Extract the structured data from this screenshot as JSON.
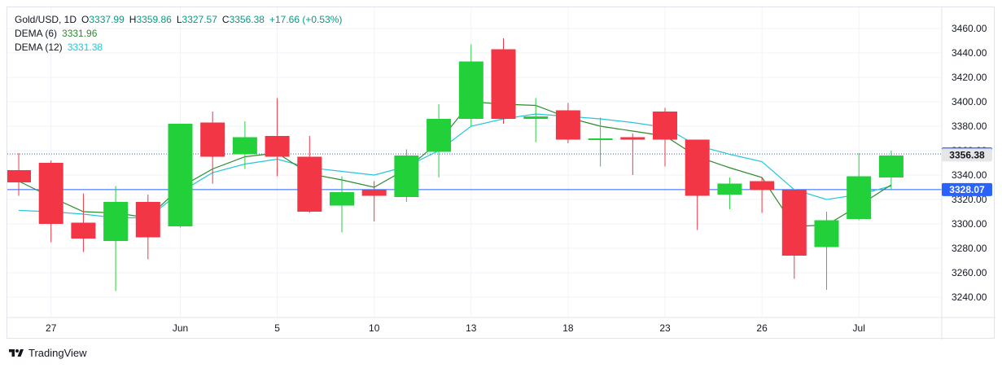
{
  "legend": {
    "symbol": "Gold/USD, 1D",
    "ohlc": {
      "open_label": "O",
      "open": "3337.99",
      "high_label": "H",
      "high": "3359.86",
      "low_label": "L",
      "low": "3327.57",
      "close_label": "C",
      "close": "3356.38",
      "change": "+17.66 (+0.53%)"
    },
    "dema6": {
      "label": "DEMA (6)",
      "value": "3331.96",
      "color": "#2e8b2e"
    },
    "dema12": {
      "label": "DEMA (12)",
      "value": "3331.38",
      "color": "#26c6da"
    }
  },
  "price_tags": {
    "dema6_tag": {
      "value": "3357.21",
      "color": "#2962ff"
    },
    "close_tag": {
      "value": "3356.38",
      "color": "#e6e6e6"
    },
    "dema12_tag": {
      "value": "3328.07",
      "color": "#2962ff"
    }
  },
  "branding": "TradingView",
  "colors": {
    "up": "#22d13a",
    "down": "#f23645",
    "grid": "#f0f3fa"
  },
  "chart_data": {
    "type": "candlestick",
    "title": "Gold/USD, 1D",
    "y_ticks": [
      3240,
      3260,
      3280,
      3300,
      3320,
      3340,
      3360,
      3380,
      3400,
      3420,
      3440,
      3460
    ],
    "x_ticks": [
      {
        "index": 1,
        "label": "27"
      },
      {
        "index": 5,
        "label": "Jun"
      },
      {
        "index": 8,
        "label": "5"
      },
      {
        "index": 11,
        "label": "10"
      },
      {
        "index": 14,
        "label": "13"
      },
      {
        "index": 17,
        "label": "18"
      },
      {
        "index": 20,
        "label": "23"
      },
      {
        "index": 23,
        "label": "26"
      },
      {
        "index": 26,
        "label": "Jul"
      }
    ],
    "candles": [
      {
        "o": 3344,
        "h": 3358,
        "l": 3323,
        "c": 3334
      },
      {
        "o": 3350,
        "h": 3352,
        "l": 3285,
        "c": 3300
      },
      {
        "o": 3301,
        "h": 3325,
        "l": 3277,
        "c": 3288
      },
      {
        "o": 3286,
        "h": 3331,
        "l": 3245,
        "c": 3318
      },
      {
        "o": 3318,
        "h": 3324,
        "l": 3271,
        "c": 3289
      },
      {
        "o": 3298,
        "h": 3382,
        "l": 3297,
        "c": 3382
      },
      {
        "o": 3383,
        "h": 3392,
        "l": 3333,
        "c": 3355
      },
      {
        "o": 3357,
        "h": 3384,
        "l": 3345,
        "c": 3371
      },
      {
        "o": 3372,
        "h": 3403,
        "l": 3339,
        "c": 3355
      },
      {
        "o": 3355,
        "h": 3372,
        "l": 3309,
        "c": 3310
      },
      {
        "o": 3315,
        "h": 3339,
        "l": 3293,
        "c": 3326
      },
      {
        "o": 3328,
        "h": 3335,
        "l": 3302,
        "c": 3323
      },
      {
        "o": 3322,
        "h": 3361,
        "l": 3318,
        "c": 3356
      },
      {
        "o": 3359,
        "h": 3398,
        "l": 3338,
        "c": 3386
      },
      {
        "o": 3386,
        "h": 3447,
        "l": 3380,
        "c": 3433
      },
      {
        "o": 3443,
        "h": 3452,
        "l": 3382,
        "c": 3386
      },
      {
        "o": 3386,
        "h": 3403,
        "l": 3367,
        "c": 3388
      },
      {
        "o": 3393,
        "h": 3399,
        "l": 3366,
        "c": 3369
      },
      {
        "o": 3370,
        "h": 3387,
        "l": 3347,
        "c": 3370
      },
      {
        "o": 3371,
        "h": 3374,
        "l": 3340,
        "c": 3369
      },
      {
        "o": 3392,
        "h": 3395,
        "l": 3347,
        "c": 3369
      },
      {
        "o": 3369,
        "h": 3369,
        "l": 3295,
        "c": 3323
      },
      {
        "o": 3324,
        "h": 3338,
        "l": 3312,
        "c": 3333
      },
      {
        "o": 3335,
        "h": 3338,
        "l": 3309,
        "c": 3328
      },
      {
        "o": 3328,
        "h": 3328,
        "l": 3255,
        "c": 3274
      },
      {
        "o": 3281,
        "h": 3310,
        "l": 3246,
        "c": 3303
      },
      {
        "o": 3304,
        "h": 3358,
        "l": 3303,
        "c": 3339
      },
      {
        "o": 3338,
        "h": 3360,
        "l": 3328,
        "c": 3356
      }
    ],
    "series": [
      {
        "name": "DEMA (6)",
        "color": "#2e8b2e",
        "values": [
          3335,
          3322,
          3310,
          3309,
          3305,
          3330,
          3345,
          3355,
          3358,
          3341,
          3336,
          3330,
          3345,
          3367,
          3400,
          3398,
          3397,
          3387,
          3380,
          3376,
          3372,
          3355,
          3346,
          3338,
          3298,
          3299,
          3315,
          3332
        ]
      },
      {
        "name": "DEMA (12)",
        "color": "#26c6da",
        "values": [
          3311,
          3310,
          3308,
          3305,
          3305,
          3326,
          3342,
          3349,
          3353,
          3346,
          3343,
          3340,
          3347,
          3360,
          3380,
          3386,
          3390,
          3388,
          3386,
          3383,
          3379,
          3364,
          3357,
          3351,
          3328,
          3320,
          3324,
          3331
        ]
      }
    ],
    "hlines": [
      {
        "value": 3357.21,
        "style": "dotted",
        "color": "#2962ff"
      },
      {
        "value": 3328.07,
        "style": "solid",
        "color": "#2962ff"
      }
    ],
    "legend": "top-left",
    "grid": true
  }
}
